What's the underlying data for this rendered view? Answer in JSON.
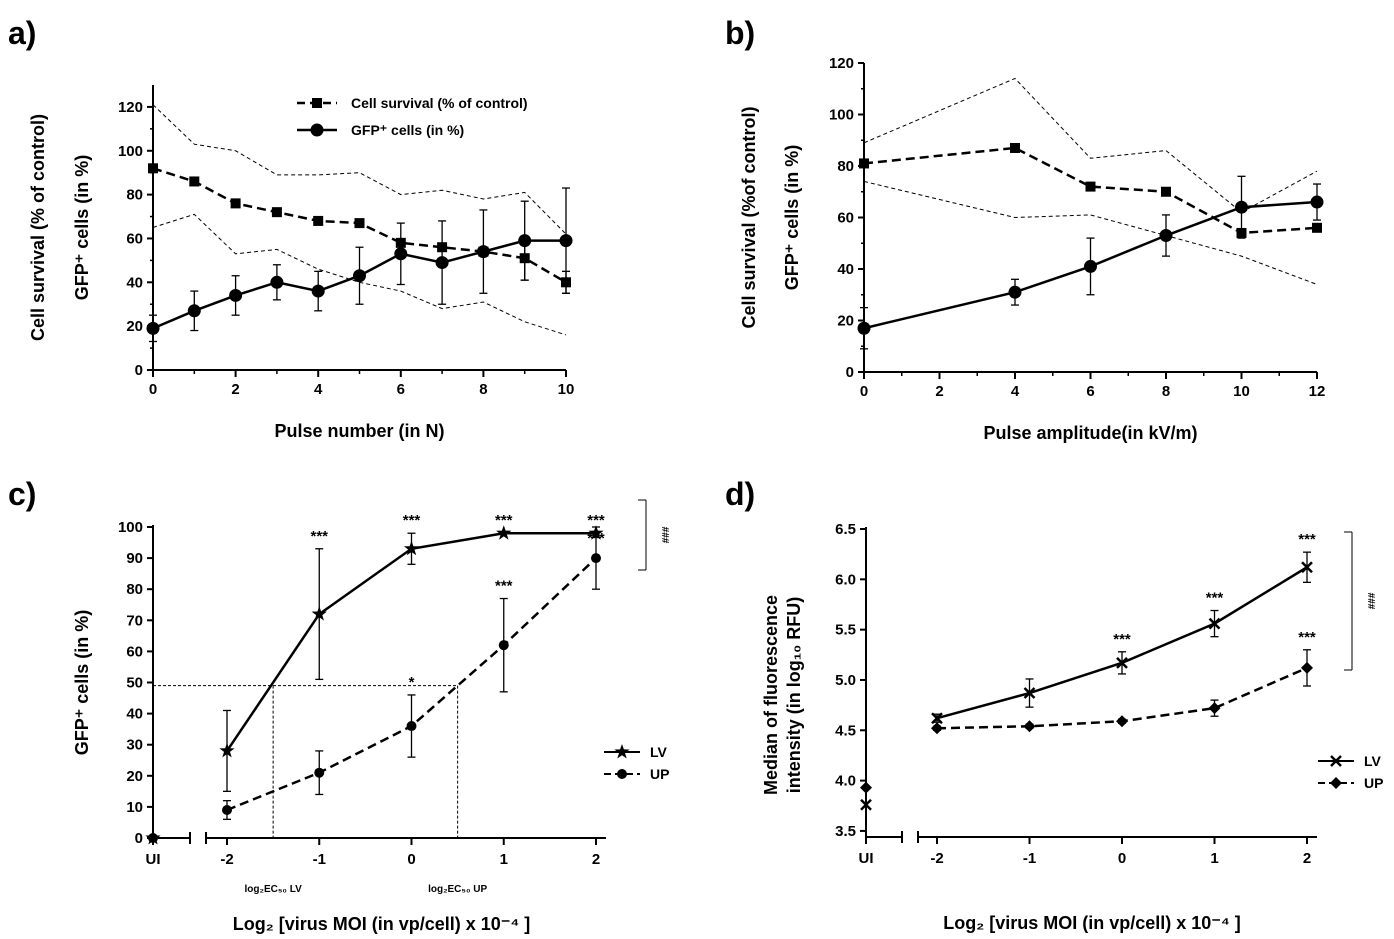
{
  "chart_data": [
    {
      "panel": "a)",
      "type": "line",
      "xlabel": "Pulse number (in N)",
      "ylabel_top": "Cell survival (% of control)",
      "ylabel_bottom": "GFP⁺ cells (in %)",
      "xlim": [
        0,
        10
      ],
      "ylim": [
        0,
        130
      ],
      "xticks": [
        "0",
        "2",
        "4",
        "6",
        "8",
        "10"
      ],
      "yticks": [
        "0",
        "20",
        "40",
        "60",
        "80",
        "100",
        "120"
      ],
      "legend_position": "top-right",
      "series": [
        {
          "name": "Cell survival (% of control)",
          "style": "dashed",
          "marker": "square",
          "x": [
            0,
            1,
            2,
            3,
            4,
            5,
            6,
            7,
            8,
            9,
            10
          ],
          "y": [
            92,
            86,
            76,
            72,
            68,
            67,
            58,
            56,
            54,
            51,
            40
          ],
          "err": [
            0,
            0,
            0,
            0,
            0,
            0,
            0,
            0,
            0,
            10,
            5
          ],
          "band_upper": [
            121,
            103,
            100,
            89,
            89,
            90,
            80,
            82,
            78,
            81,
            62
          ],
          "band_lower": [
            65,
            71,
            53,
            55,
            46,
            40,
            36,
            28,
            31,
            22,
            16
          ]
        },
        {
          "name": "GFP⁺ cells (in %)",
          "style": "solid",
          "marker": "circle",
          "x": [
            0,
            1,
            2,
            3,
            4,
            5,
            6,
            7,
            8,
            9,
            10
          ],
          "y": [
            19,
            27,
            34,
            40,
            36,
            43,
            53,
            49,
            54,
            59,
            59
          ],
          "err": [
            6,
            9,
            9,
            8,
            9,
            13,
            14,
            19,
            19,
            18,
            24
          ]
        }
      ]
    },
    {
      "panel": "b)",
      "type": "line",
      "xlabel": "Pulse amplitude(in kV/m)",
      "ylabel_top": "Cell survival (%of control)",
      "ylabel_bottom": "GFP⁺ cells (in %)",
      "xlim": [
        0,
        12
      ],
      "ylim": [
        0,
        120
      ],
      "xticks": [
        "0",
        "2",
        "4",
        "6",
        "8",
        "10",
        "12"
      ],
      "yticks": [
        "0",
        "20",
        "40",
        "60",
        "80",
        "100",
        "120"
      ],
      "series": [
        {
          "name": "Cell survival",
          "style": "dashed",
          "marker": "square",
          "x": [
            0,
            4,
            6,
            8,
            10,
            12
          ],
          "y": [
            81,
            87,
            72,
            70,
            54,
            56
          ],
          "err": [
            0,
            0,
            0,
            0,
            0,
            0
          ],
          "band_upper": [
            89,
            114,
            83,
            86,
            62,
            78
          ],
          "band_lower": [
            74,
            60,
            61,
            53,
            45,
            34
          ]
        },
        {
          "name": "GFP⁺ cells",
          "style": "solid",
          "marker": "circle",
          "x": [
            0,
            4,
            6,
            8,
            10,
            12
          ],
          "y": [
            17,
            31,
            41,
            53,
            64,
            66
          ],
          "err": [
            8,
            5,
            11,
            8,
            12,
            7
          ]
        }
      ]
    },
    {
      "panel": "c)",
      "type": "line",
      "xlabel": "Log₂ [virus MOI (in vp/cell) x 10⁻⁴ ]",
      "ylabel": "GFP⁺ cells (in %)",
      "xlim": [
        -2,
        2
      ],
      "ylim": [
        0,
        100
      ],
      "ui_label": "UI",
      "xticks": [
        "-2",
        "-1",
        "0",
        "1",
        "2"
      ],
      "yticks": [
        "0",
        "10",
        "20",
        "30",
        "40",
        "50",
        "60",
        "70",
        "80",
        "90",
        "100"
      ],
      "ec50_level": 49,
      "ec50_lv": {
        "x": -1.5,
        "label": "log₂EC₅₀ LV"
      },
      "ec50_up": {
        "x": 0.5,
        "label": "log₂EC₅₀ UP"
      },
      "group_significance": "###",
      "series": [
        {
          "name": "LV",
          "style": "solid",
          "marker": "star",
          "ui_value": 0,
          "x": [
            -2,
            -1,
            0,
            1,
            2
          ],
          "y": [
            28,
            72,
            93,
            98,
            98
          ],
          "err": [
            13,
            21,
            5,
            0,
            0
          ],
          "sig": [
            "",
            "***",
            "***",
            "***",
            "***"
          ]
        },
        {
          "name": "UP",
          "style": "dashed",
          "marker": "dot",
          "ui_value": 0,
          "x": [
            -2,
            -1,
            0,
            1,
            2
          ],
          "y": [
            9,
            21,
            36,
            62,
            90
          ],
          "err": [
            3,
            7,
            10,
            15,
            10
          ],
          "sig": [
            "",
            "",
            "*",
            "***",
            "***"
          ]
        }
      ]
    },
    {
      "panel": "d)",
      "type": "line",
      "xlabel": "Log₂ [virus MOI (in vp/cell) x 10⁻⁴ ]",
      "ylabel_top": "Median of fluorescence",
      "ylabel_bottom": "intensity (in log₁₀ RFU)",
      "xlim": [
        -2,
        2
      ],
      "ylim": [
        3.4,
        6.5
      ],
      "ui_label": "UI",
      "xticks": [
        "-2",
        "-1",
        "0",
        "1",
        "2"
      ],
      "yticks": [
        "3.5",
        "4.0",
        "4.5",
        "5.0",
        "5.5",
        "6.0",
        "6.5"
      ],
      "group_significance": "###",
      "series": [
        {
          "name": "LV",
          "style": "solid",
          "marker": "cross",
          "ui_value": 3.76,
          "x": [
            -2,
            -1,
            0,
            1,
            2
          ],
          "y": [
            4.62,
            4.87,
            5.17,
            5.56,
            6.12
          ],
          "err": [
            0.04,
            0.14,
            0.11,
            0.13,
            0.15
          ],
          "sig": [
            "",
            "",
            "***",
            "***",
            "***"
          ]
        },
        {
          "name": "UP",
          "style": "dashed",
          "marker": "diamond",
          "ui_value": 3.93,
          "x": [
            -2,
            -1,
            0,
            1,
            2
          ],
          "y": [
            4.52,
            4.54,
            4.59,
            4.72,
            5.12
          ],
          "err": [
            0.02,
            0.02,
            0.02,
            0.08,
            0.18
          ],
          "sig": [
            "",
            "",
            "",
            "",
            "***"
          ]
        }
      ]
    }
  ]
}
